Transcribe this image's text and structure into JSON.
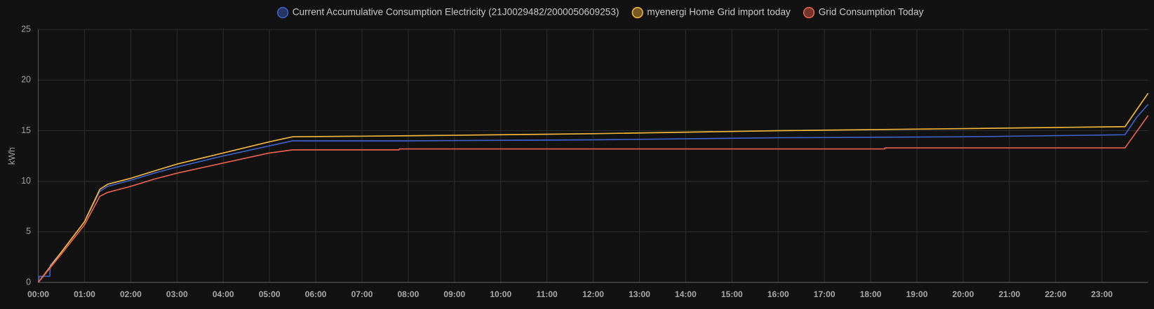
{
  "chart_data": {
    "type": "line",
    "y_label": "kWh",
    "xlim": [
      0,
      24
    ],
    "ylim": [
      0,
      25
    ],
    "yticks": [
      0,
      5,
      10,
      15,
      20,
      25
    ],
    "xticks": [
      {
        "value": 0,
        "label": "00:00"
      },
      {
        "value": 1,
        "label": "01:00"
      },
      {
        "value": 2,
        "label": "02:00"
      },
      {
        "value": 3,
        "label": "03:00"
      },
      {
        "value": 4,
        "label": "04:00"
      },
      {
        "value": 5,
        "label": "05:00"
      },
      {
        "value": 6,
        "label": "06:00"
      },
      {
        "value": 7,
        "label": "07:00"
      },
      {
        "value": 8,
        "label": "08:00"
      },
      {
        "value": 9,
        "label": "09:00"
      },
      {
        "value": 10,
        "label": "10:00"
      },
      {
        "value": 11,
        "label": "11:00"
      },
      {
        "value": 12,
        "label": "12:00"
      },
      {
        "value": 13,
        "label": "13:00"
      },
      {
        "value": 14,
        "label": "14:00"
      },
      {
        "value": 15,
        "label": "15:00"
      },
      {
        "value": 16,
        "label": "16:00"
      },
      {
        "value": 17,
        "label": "17:00"
      },
      {
        "value": 18,
        "label": "18:00"
      },
      {
        "value": 19,
        "label": "19:00"
      },
      {
        "value": 20,
        "label": "20:00"
      },
      {
        "value": 21,
        "label": "21:00"
      },
      {
        "value": 22,
        "label": "22:00"
      },
      {
        "value": 23,
        "label": "23:00"
      }
    ],
    "grid": true,
    "series": [
      {
        "name": "Current Accumulative Consumption Electricity (21J0029482/2000050609253)",
        "color": "#3d5fc4",
        "x": [
          0,
          0.02,
          0.25,
          0.26,
          0.5,
          1,
          1.33,
          1.5,
          2,
          2.5,
          3,
          4,
          5,
          5.5,
          8,
          12,
          16,
          20,
          23.5,
          23.75,
          24
        ],
        "values": [
          0,
          0.6,
          0.6,
          1.7,
          3,
          6,
          9,
          9.5,
          10.1,
          10.8,
          11.4,
          12.5,
          13.5,
          14.0,
          14.0,
          14.1,
          14.3,
          14.4,
          14.6,
          16.3,
          17.6
        ]
      },
      {
        "name": "myenergi Home Grid import today",
        "color": "#f0b43c",
        "x": [
          0,
          0.25,
          0.5,
          1,
          1.33,
          1.5,
          2,
          2.5,
          3,
          4,
          5,
          5.5,
          8,
          12,
          16,
          20,
          23.5,
          24
        ],
        "values": [
          0,
          1.5,
          3,
          6,
          9.2,
          9.7,
          10.3,
          11.0,
          11.7,
          12.8,
          13.9,
          14.4,
          14.5,
          14.7,
          15.0,
          15.2,
          15.4,
          18.7
        ]
      },
      {
        "name": "Grid Consumption Today",
        "color": "#e8604c",
        "x": [
          0,
          0.5,
          1,
          1.33,
          1.5,
          2,
          2.5,
          3,
          4,
          5,
          5.5,
          7.8,
          7.81,
          18.3,
          18.31,
          23.5,
          24
        ],
        "values": [
          0,
          2.8,
          5.7,
          8.5,
          8.9,
          9.5,
          10.2,
          10.8,
          11.8,
          12.8,
          13.1,
          13.1,
          13.2,
          13.2,
          13.3,
          13.3,
          16.5
        ]
      }
    ]
  }
}
